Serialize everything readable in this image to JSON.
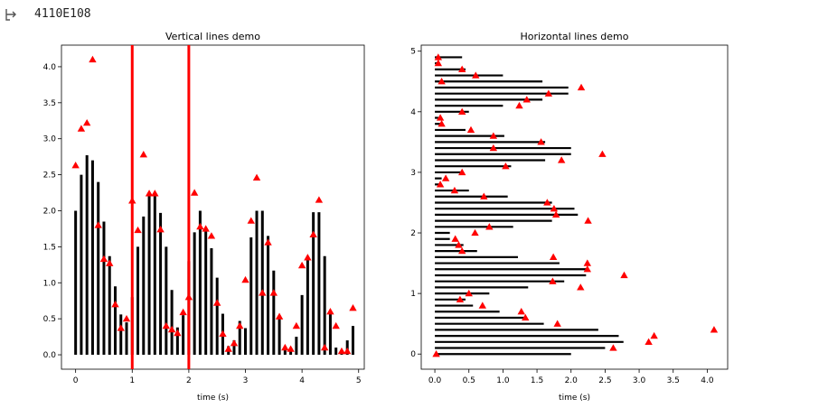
{
  "output": {
    "text": "4110E108",
    "icon": "output-arrow-icon"
  },
  "chart_data": [
    {
      "type": "bar",
      "title": "Vertical lines demo",
      "xlabel": "time (s)",
      "ylabel": "",
      "xlim": [
        -0.25,
        5.1
      ],
      "ylim": [
        -0.2,
        4.3
      ],
      "xticks": [
        "0",
        "1",
        "2",
        "3",
        "4",
        "5"
      ],
      "yticks": [
        "0.0",
        "0.5",
        "1.0",
        "1.5",
        "2.0",
        "2.5",
        "3.0",
        "3.5",
        "4.0"
      ],
      "grid": false,
      "legend": "none",
      "colors": {
        "lines": "#000000",
        "markers": "#ff0000",
        "vlines": "#ff0000"
      },
      "vertical_lines_at": [
        1,
        2
      ],
      "x": [
        0.0,
        0.1,
        0.2,
        0.3,
        0.4,
        0.5,
        0.6,
        0.7,
        0.8,
        0.9,
        1.0,
        1.1,
        1.2,
        1.3,
        1.4,
        1.5,
        1.6,
        1.7,
        1.8,
        1.9,
        2.0,
        2.1,
        2.2,
        2.3,
        2.4,
        2.5,
        2.6,
        2.7,
        2.8,
        2.9,
        3.0,
        3.1,
        3.2,
        3.3,
        3.4,
        3.5,
        3.6,
        3.7,
        3.8,
        3.9,
        4.0,
        4.1,
        4.2,
        4.3,
        4.4,
        4.5,
        4.6,
        4.7,
        4.8,
        4.9
      ],
      "values": [
        2.0,
        2.5,
        2.77,
        2.7,
        2.4,
        1.85,
        1.37,
        0.95,
        0.56,
        0.45,
        0.8,
        1.5,
        1.92,
        2.22,
        2.24,
        1.97,
        1.5,
        0.9,
        0.38,
        0.55,
        1.3,
        1.7,
        2.0,
        1.75,
        1.48,
        1.07,
        0.57,
        0.12,
        0.2,
        0.47,
        0.37,
        1.63,
        2.0,
        2.0,
        1.65,
        1.17,
        0.55,
        0.12,
        0.1,
        0.25,
        0.83,
        1.37,
        1.98,
        1.98,
        1.37,
        0.57,
        0.1,
        0.05,
        0.2,
        0.4
      ],
      "markers": [
        2.63,
        3.14,
        3.22,
        4.1,
        1.8,
        1.33,
        1.27,
        0.7,
        0.37,
        0.5,
        2.14,
        1.73,
        2.78,
        2.24,
        2.24,
        1.74,
        0.4,
        0.35,
        0.3,
        0.59,
        0.8,
        2.25,
        1.78,
        1.75,
        1.65,
        0.72,
        0.29,
        0.08,
        0.16,
        0.4,
        1.04,
        1.86,
        2.46,
        0.86,
        1.56,
        0.86,
        0.53,
        0.1,
        0.08,
        0.4,
        1.24,
        1.35,
        1.67,
        2.15,
        0.1,
        0.6,
        0.4,
        0.05,
        0.05,
        0.65
      ]
    },
    {
      "type": "bar",
      "orientation": "horizontal",
      "title": "Horizontal lines demo",
      "xlabel": "time (s)",
      "ylabel": "",
      "xlim": [
        -0.2,
        4.3
      ],
      "ylim": [
        -0.25,
        5.1
      ],
      "xticks": [
        "0.0",
        "0.5",
        "1.0",
        "1.5",
        "2.0",
        "2.5",
        "3.0",
        "3.5",
        "4.0"
      ],
      "yticks": [
        "0",
        "1",
        "2",
        "3",
        "4",
        "5"
      ],
      "grid": false,
      "legend": "none",
      "colors": {
        "lines": "#000000",
        "markers": "#ff0000"
      },
      "y": [
        0.0,
        0.1,
        0.2,
        0.3,
        0.4,
        0.5,
        0.6,
        0.7,
        0.8,
        0.9,
        1.0,
        1.1,
        1.2,
        1.3,
        1.4,
        1.5,
        1.6,
        1.7,
        1.8,
        1.9,
        2.0,
        2.1,
        2.2,
        2.3,
        2.4,
        2.5,
        2.6,
        2.7,
        2.8,
        2.9,
        3.0,
        3.1,
        3.2,
        3.3,
        3.4,
        3.5,
        3.6,
        3.7,
        3.8,
        3.9,
        4.0,
        4.1,
        4.2,
        4.3,
        4.4,
        4.5,
        4.6,
        4.7,
        4.8,
        4.9
      ],
      "values": [
        2.0,
        2.5,
        2.77,
        2.7,
        2.4,
        1.6,
        1.35,
        0.95,
        0.56,
        0.45,
        0.8,
        1.37,
        1.9,
        2.22,
        2.24,
        1.83,
        1.22,
        0.62,
        0.42,
        0.22,
        0.22,
        1.15,
        1.72,
        2.1,
        2.05,
        1.72,
        1.07,
        0.5,
        0.1,
        0.1,
        0.4,
        1.12,
        1.62,
        2.0,
        2.0,
        1.62,
        1.02,
        0.45,
        0.08,
        0.05,
        0.5,
        1.0,
        1.58,
        1.96,
        1.96,
        1.58,
        1.0,
        0.45,
        0.05,
        0.4
      ],
      "markers": [
        0.02,
        2.62,
        3.14,
        3.22,
        4.1,
        1.8,
        1.33,
        1.27,
        0.7,
        0.37,
        0.5,
        2.14,
        1.73,
        2.78,
        2.24,
        2.24,
        1.74,
        0.4,
        0.35,
        0.3,
        0.59,
        0.8,
        2.25,
        1.78,
        1.75,
        1.65,
        0.72,
        0.29,
        0.08,
        0.16,
        0.4,
        1.04,
        1.86,
        2.46,
        0.86,
        1.56,
        0.86,
        0.53,
        0.1,
        0.08,
        0.4,
        1.24,
        1.35,
        1.67,
        2.15,
        0.1,
        0.6,
        0.4,
        0.05,
        0.05
      ]
    }
  ]
}
